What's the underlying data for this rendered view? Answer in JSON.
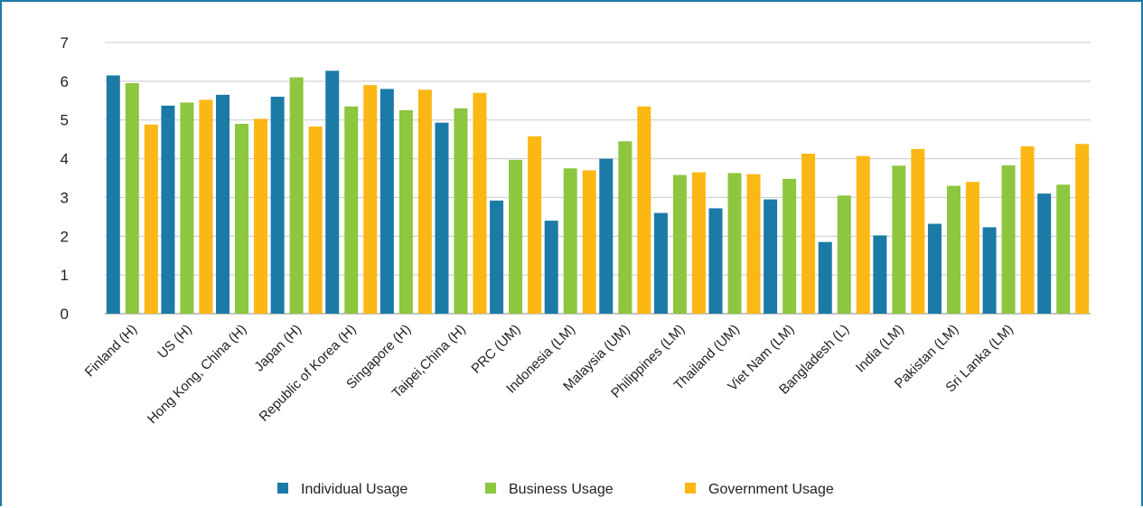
{
  "chart_data": {
    "type": "bar",
    "title": "",
    "xlabel": "",
    "ylabel": "",
    "ylim": [
      0,
      7
    ],
    "yticks": [
      0,
      1,
      2,
      3,
      4,
      5,
      6,
      7
    ],
    "grid": true,
    "legend_position": "bottom",
    "categories": [
      "Finland (H)",
      "US (H)",
      "Hong Kong, China (H)",
      "Japan (H)",
      "Republic of Korea (H)",
      "Singapore (H)",
      "Taipei,China (H)",
      "PRC (UM)",
      "Indonesia (LM)",
      "Malaysia (UM)",
      "Philippines (LM)",
      "Thailand (UM)",
      "Viet Nam (LM)",
      "Bangladesh (L)",
      "India (LM)",
      "Pakistan (LM)",
      "Sri Lanka (LM)",
      ""
    ],
    "series": [
      {
        "name": "Individual Usage",
        "color": "#1b7ba6",
        "values": [
          6.15,
          5.37,
          5.65,
          5.6,
          6.27,
          5.8,
          4.93,
          2.92,
          2.4,
          4.0,
          2.6,
          2.72,
          2.95,
          1.85,
          2.02,
          2.32,
          2.23,
          3.1
        ]
      },
      {
        "name": "Business Usage",
        "color": "#8dc63f",
        "values": [
          5.95,
          5.45,
          4.9,
          6.1,
          5.35,
          5.25,
          5.3,
          3.97,
          3.75,
          4.45,
          3.58,
          3.63,
          3.48,
          3.05,
          3.82,
          3.3,
          3.83,
          3.33
        ]
      },
      {
        "name": "Government Usage",
        "color": "#fbb714",
        "values": [
          4.88,
          5.52,
          5.03,
          4.83,
          5.9,
          5.78,
          5.7,
          4.58,
          3.7,
          5.35,
          3.65,
          3.6,
          4.13,
          4.07,
          4.25,
          3.4,
          4.32,
          4.38
        ]
      }
    ]
  }
}
